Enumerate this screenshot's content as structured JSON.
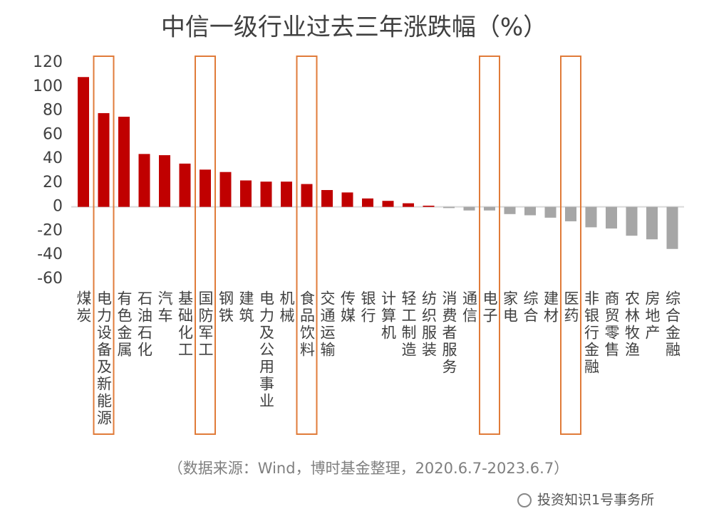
{
  "chart_data": {
    "type": "bar",
    "title": "中信一级行业过去三年涨跌幅（%）",
    "categories": [
      "煤炭",
      "电力设备及新能源",
      "有色金属",
      "石油石化",
      "汽车",
      "基础化工",
      "国防军工",
      "钢铁",
      "建筑",
      "电力及公用事业",
      "机械",
      "食品饮料",
      "交通运输",
      "传媒",
      "银行",
      "计算机",
      "轻工制造",
      "纺织服装",
      "消费者服务",
      "通信",
      "电子",
      "家电",
      "综合",
      "建材",
      "医药",
      "非银行金融",
      "商贸零售",
      "农林牧渔",
      "房地产",
      "综合金融"
    ],
    "values": [
      108,
      78,
      75,
      44,
      43,
      36,
      31,
      29,
      22,
      21,
      21,
      19,
      14,
      12,
      7,
      5,
      3,
      1,
      -1,
      -3,
      -3,
      -6,
      -7,
      -9,
      -12,
      -17,
      -18,
      -24,
      -27,
      -35
    ],
    "positive_color": "#c00000",
    "negative_color": "#a6a6a6",
    "highlight_color": "#e07b39",
    "highlight": [
      1,
      6,
      11,
      20,
      24
    ],
    "ylim": [
      -60,
      120
    ],
    "yticks": [
      -60,
      -40,
      -20,
      0,
      20,
      40,
      60,
      80,
      100,
      120
    ],
    "source": "（数据来源：Wind，博时基金整理，2020.6.7-2023.6.7）",
    "watermark": "投资知识1号事务所"
  }
}
